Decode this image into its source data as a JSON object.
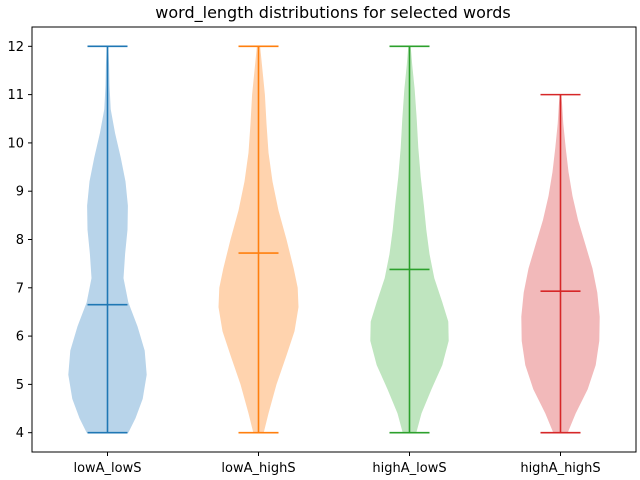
{
  "chart_data": {
    "type": "violin",
    "title": "word_length distributions for selected words",
    "xlabel": "",
    "ylabel": "",
    "categories": [
      "lowA_lowS",
      "lowA_highS",
      "highA_lowS",
      "highA_highS"
    ],
    "ylim": [
      3.6,
      12.4
    ],
    "yticks": [
      4,
      5,
      6,
      7,
      8,
      9,
      10,
      11,
      12
    ],
    "grid": false,
    "series": [
      {
        "category": "lowA_lowS",
        "min": 4,
        "max": 12,
        "mean": 6.65,
        "color": "#1f77b4",
        "fill": "#b8d4ea",
        "profile": [
          [
            4,
            0.52
          ],
          [
            4.3,
            0.7
          ],
          [
            4.7,
            0.88
          ],
          [
            5.2,
            0.98
          ],
          [
            5.7,
            0.93
          ],
          [
            6.2,
            0.75
          ],
          [
            6.7,
            0.52
          ],
          [
            7.2,
            0.4
          ],
          [
            7.7,
            0.44
          ],
          [
            8.2,
            0.5
          ],
          [
            8.7,
            0.51
          ],
          [
            9.2,
            0.45
          ],
          [
            9.7,
            0.33
          ],
          [
            10.2,
            0.19
          ],
          [
            10.7,
            0.08
          ],
          [
            11.2,
            0.05
          ],
          [
            11.6,
            0.04
          ],
          [
            12,
            0.02
          ]
        ]
      },
      {
        "category": "lowA_highS",
        "min": 4,
        "max": 12,
        "mean": 7.72,
        "color": "#ff7f0e",
        "fill": "#ffd3ae",
        "profile": [
          [
            4,
            0.13
          ],
          [
            4.4,
            0.25
          ],
          [
            5,
            0.45
          ],
          [
            5.6,
            0.7
          ],
          [
            6.1,
            0.9
          ],
          [
            6.6,
            1.0
          ],
          [
            7,
            0.98
          ],
          [
            7.4,
            0.88
          ],
          [
            8,
            0.7
          ],
          [
            8.6,
            0.5
          ],
          [
            9.2,
            0.35
          ],
          [
            9.8,
            0.25
          ],
          [
            10.4,
            0.2
          ],
          [
            11,
            0.16
          ],
          [
            11.5,
            0.1
          ],
          [
            12,
            0.04
          ]
        ]
      },
      {
        "category": "highA_lowS",
        "min": 4,
        "max": 12,
        "mean": 7.38,
        "color": "#2ca02c",
        "fill": "#bfe5bf",
        "profile": [
          [
            4,
            0.17
          ],
          [
            4.4,
            0.3
          ],
          [
            4.9,
            0.55
          ],
          [
            5.4,
            0.82
          ],
          [
            5.9,
            0.98
          ],
          [
            6.3,
            0.97
          ],
          [
            6.7,
            0.82
          ],
          [
            7.2,
            0.62
          ],
          [
            7.7,
            0.5
          ],
          [
            8.2,
            0.42
          ],
          [
            8.7,
            0.36
          ],
          [
            9.3,
            0.28
          ],
          [
            9.9,
            0.22
          ],
          [
            10.5,
            0.18
          ],
          [
            11.1,
            0.13
          ],
          [
            11.6,
            0.07
          ],
          [
            12,
            0.03
          ]
        ]
      },
      {
        "category": "highA_highS",
        "min": 4,
        "max": 11,
        "mean": 6.93,
        "color": "#d62728",
        "fill": "#f2b9ba",
        "profile": [
          [
            4,
            0.18
          ],
          [
            4.4,
            0.38
          ],
          [
            4.9,
            0.68
          ],
          [
            5.4,
            0.88
          ],
          [
            5.9,
            0.97
          ],
          [
            6.4,
            0.98
          ],
          [
            6.9,
            0.92
          ],
          [
            7.4,
            0.8
          ],
          [
            7.9,
            0.62
          ],
          [
            8.4,
            0.44
          ],
          [
            8.9,
            0.3
          ],
          [
            9.4,
            0.2
          ],
          [
            9.9,
            0.13
          ],
          [
            10.4,
            0.07
          ],
          [
            10.8,
            0.04
          ],
          [
            11,
            0.02
          ]
        ]
      }
    ]
  }
}
